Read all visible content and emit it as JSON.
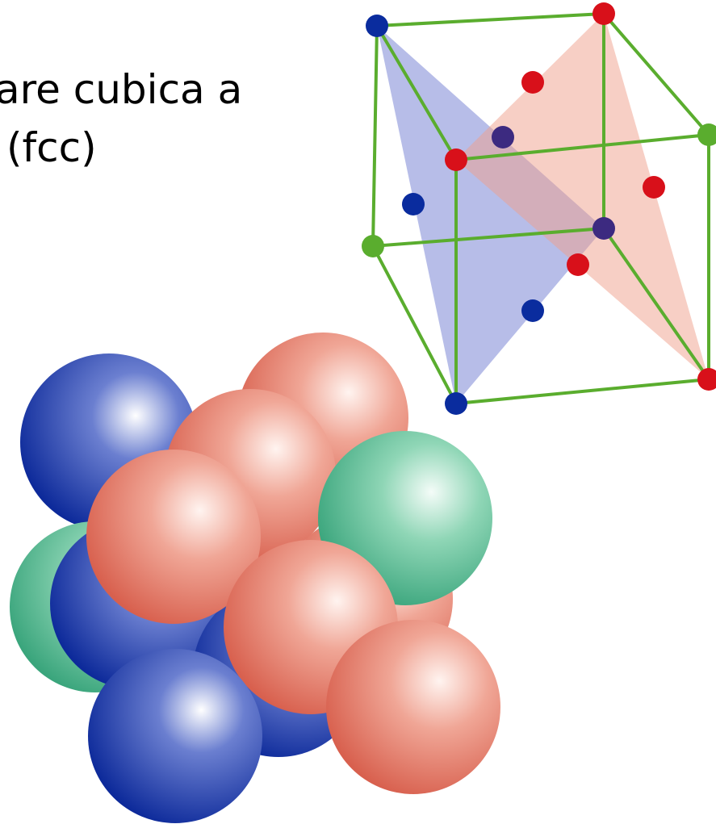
{
  "text": {
    "line1": "are cubica a",
    "line2": "(fcc)"
  }
}
